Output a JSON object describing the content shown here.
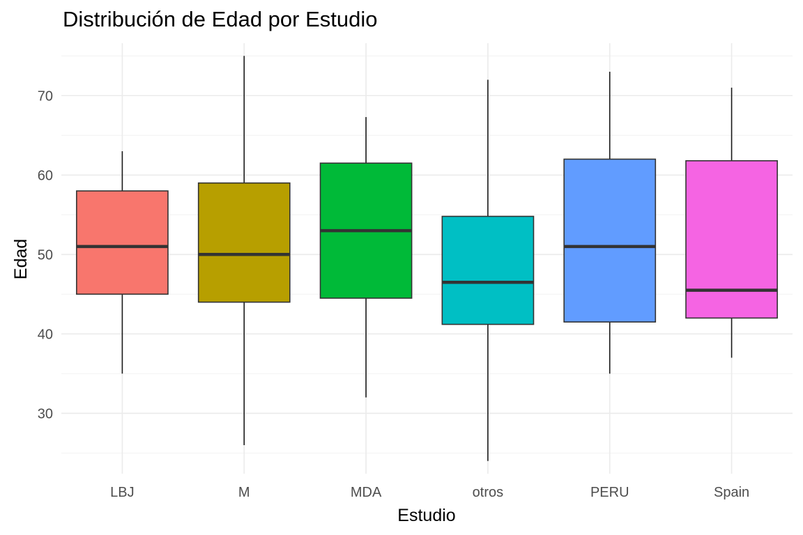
{
  "chart_data": {
    "type": "boxplot",
    "title": "Distribución de Edad por Estudio",
    "xlabel": "Estudio",
    "ylabel": "Edad",
    "categories": [
      "LBJ",
      "M",
      "MDA",
      "otros",
      "PERU",
      "Spain"
    ],
    "colors": [
      "#F8766D",
      "#B79F00",
      "#00BA38",
      "#00BFC4",
      "#619CFF",
      "#F564E3"
    ],
    "boxes": [
      {
        "name": "LBJ",
        "min": 35,
        "q1": 45,
        "median": 51,
        "q3": 58,
        "max": 63
      },
      {
        "name": "M",
        "min": 26,
        "q1": 44,
        "median": 50,
        "q3": 59,
        "max": 75
      },
      {
        "name": "MDA",
        "min": 32,
        "q1": 44.5,
        "median": 53,
        "q3": 61.5,
        "max": 67.3
      },
      {
        "name": "otros",
        "min": 24,
        "q1": 41.2,
        "median": 46.5,
        "q3": 54.8,
        "max": 72
      },
      {
        "name": "PERU",
        "min": 35,
        "q1": 41.5,
        "median": 51,
        "q3": 62,
        "max": 73
      },
      {
        "name": "Spain",
        "min": 37,
        "q1": 42,
        "median": 45.5,
        "q3": 61.8,
        "max": 71
      }
    ],
    "y_ticks": [
      30,
      40,
      50,
      60,
      70
    ],
    "ylim": [
      22.4,
      76.6
    ],
    "grid": true,
    "legend": "none"
  }
}
